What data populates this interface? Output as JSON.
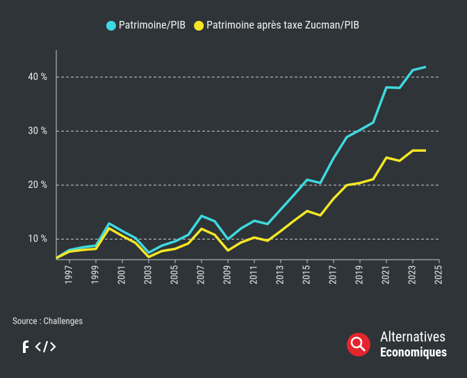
{
  "chart_data": {
    "type": "line",
    "x": [
      1996,
      1997,
      1998,
      1999,
      2000,
      2001,
      2002,
      2003,
      2004,
      2005,
      2006,
      2007,
      2008,
      2009,
      2010,
      2011,
      2012,
      2013,
      2014,
      2015,
      2016,
      2017,
      2018,
      2019,
      2020,
      2021,
      2022,
      2023,
      2024
    ],
    "series": [
      {
        "name": "Patrimoine/PIB",
        "color": "#3ed9df",
        "values": [
          6.5,
          8.0,
          8.5,
          8.8,
          12.9,
          11.5,
          10.2,
          7.5,
          8.8,
          9.6,
          10.8,
          14.3,
          13.3,
          10.0,
          12.0,
          13.4,
          12.8,
          15.5,
          18.2,
          21.0,
          20.4,
          25.0,
          28.9,
          30.2,
          31.6,
          38.1,
          38.0,
          41.3,
          41.9
        ]
      },
      {
        "name": "Patrimoine après taxe Zucman/PIB",
        "color": "#f5e625",
        "values": [
          6.5,
          7.7,
          8.0,
          8.2,
          12.0,
          10.6,
          9.3,
          6.7,
          7.8,
          8.2,
          9.2,
          11.9,
          10.8,
          7.9,
          9.4,
          10.3,
          9.7,
          11.5,
          13.4,
          15.2,
          14.4,
          17.5,
          20.0,
          20.4,
          21.1,
          25.1,
          24.5,
          26.4,
          26.4
        ]
      }
    ],
    "xlim": [
      1996,
      2025
    ],
    "xticks": [
      1997,
      1999,
      2001,
      2003,
      2005,
      2007,
      2009,
      2011,
      2013,
      2015,
      2017,
      2019,
      2021,
      2023,
      2025
    ],
    "ylim": [
      6.2,
      45
    ],
    "yticks": [
      {
        "value": 10,
        "label": "10 %"
      },
      {
        "value": 20,
        "label": "20 %"
      },
      {
        "value": 30,
        "label": "30 %"
      },
      {
        "value": 40,
        "label": "40 %"
      }
    ],
    "grid": true,
    "legend": "top",
    "source": "Source : Challenges"
  },
  "brand": {
    "line1": "Alternatives",
    "line2": "Economiques"
  }
}
